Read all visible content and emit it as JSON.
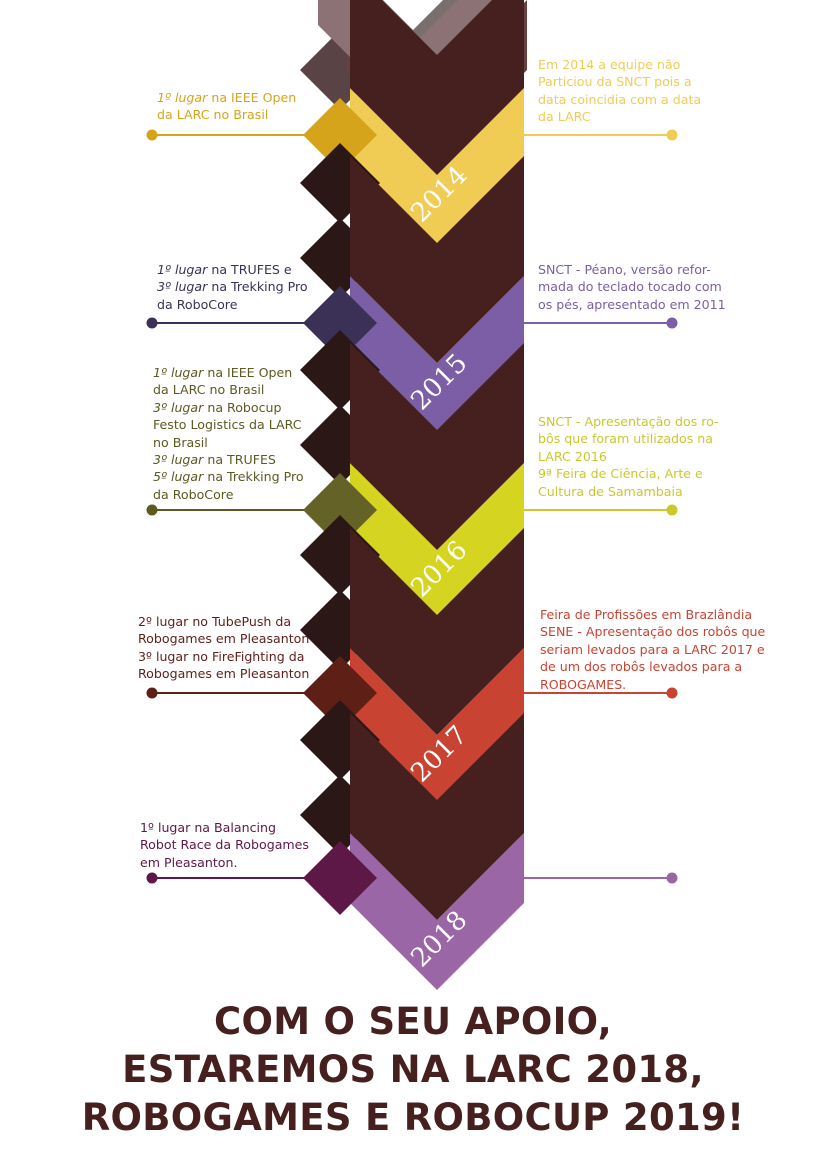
{
  "colors": {
    "dark_brown": "#45201f",
    "darker_brown": "#2a1716",
    "gray_top": "#7a6e6f",
    "mauve_top": "#8c7275",
    "maroon_top": "#683f43"
  },
  "timeline": [
    {
      "year": "2014",
      "accent": "#f0cc55",
      "accent_dark": "#d6a41b",
      "left_color": "#d6a41b",
      "right_color": "#f0cc55",
      "left_lines": [
        {
          "em": "1º lugar",
          "text": " na IEEE Open"
        },
        {
          "em": "",
          "text": "da LARC no Brasil"
        }
      ],
      "right_lines": [
        "Em 2014 a equipe não",
        "Particiou da SNCT pois a",
        "data coincidia com a data",
        "da LARC"
      ]
    },
    {
      "year": "2015",
      "accent": "#7b5ea6",
      "accent_dark": "#3b3157",
      "left_color": "#3b3157",
      "right_color": "#7b5ea6",
      "left_lines": [
        {
          "em": "1º lugar",
          "text": " na TRUFES e"
        },
        {
          "em": "3º lugar",
          "text": "  na Trekking Pro"
        },
        {
          "em": "",
          "text": "da RoboCore"
        }
      ],
      "right_lines": [
        "SNCT - Péano, versão refor-",
        "mada do teclado tocado com",
        "os pés, apresentado em 2011"
      ]
    },
    {
      "year": "2016",
      "accent": "#d5d521",
      "accent_dark": "#646226",
      "left_color": "#5c5a22",
      "right_color": "#c9c92a",
      "left_lines": [
        {
          "em": "1º lugar",
          "text": " na IEEE Open"
        },
        {
          "em": "",
          "text": "da LARC no Brasil"
        },
        {
          "em": "3º lugar",
          "text": " na Robocup"
        },
        {
          "em": "",
          "text": "Festo Logistics da LARC"
        },
        {
          "em": "",
          "text": "no Brasil"
        },
        {
          "em": "3º lugar",
          "text": " na TRUFES"
        },
        {
          "em": "5º lugar",
          "text": " na Trekking Pro"
        },
        {
          "em": "",
          "text": "da RoboCore"
        }
      ],
      "right_lines": [
        "SNCT - Apresentação dos ro-",
        "bôs que foram utilizados na",
        "LARC 2016",
        "9ª Feira de Ciência, Arte e",
        "Cultura de Samambaia"
      ]
    },
    {
      "year": "2017",
      "accent": "#c94332",
      "accent_dark": "#5e1f17",
      "left_color": "#5e1f17",
      "right_color": "#c94332",
      "left_lines": [
        {
          "em": "",
          "text": "2º lugar no TubePush da"
        },
        {
          "em": "",
          "text": "Robogames em Pleasanton"
        },
        {
          "em": "",
          "text": "3º lugar no FireFighting da"
        },
        {
          "em": "",
          "text": "Robogames em Pleasanton"
        }
      ],
      "right_lines": [
        "Feira de Profissões em Brazlândia",
        "SENE - Apresentação dos robôs que",
        "seriam levados para a LARC 2017 e",
        "de um dos robôs levados para a",
        "ROBOGAMES."
      ]
    },
    {
      "year": "2018",
      "accent": "#9b66a6",
      "accent_dark": "#5e1847",
      "left_color": "#5e1847",
      "right_color": "#9b66a6",
      "left_lines": [
        {
          "em": "",
          "text": "1º lugar na Balancing"
        },
        {
          "em": "",
          "text": "Robot Race da Robogames"
        },
        {
          "em": "",
          "text": "em Pleasanton."
        }
      ],
      "right_lines": []
    }
  ],
  "headline": [
    "COM O SEU APOIO,",
    "ESTAREMOS NA LARC 2018,",
    "ROBOGAMES E ROBOCUP 2019!"
  ]
}
